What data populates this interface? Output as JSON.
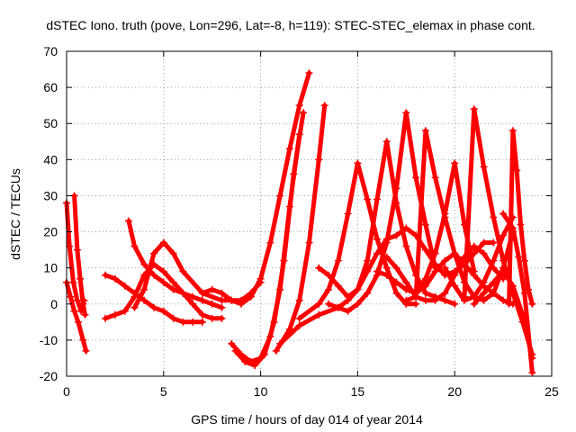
{
  "chart_data": {
    "type": "scatter",
    "title": "dSTEC Iono. truth (pove, Lon=296, Lat=-8, h=119): STEC-STEC_elemax in phase cont.",
    "xlabel": "GPS time / hours of day 014 of year 2014",
    "ylabel": "dSTEC  / TECUs",
    "xlim": [
      0,
      25
    ],
    "ylim": [
      -20,
      70
    ],
    "xticks": [
      0,
      5,
      10,
      15,
      20,
      25
    ],
    "yticks": [
      -20,
      -10,
      0,
      10,
      20,
      30,
      40,
      50,
      60,
      70
    ],
    "grid": true,
    "marker": "+",
    "color": "#ff0000",
    "series": [
      {
        "x": [
          0.0,
          0.15,
          0.35,
          0.55,
          0.75,
          0.9
        ],
        "y": [
          28,
          16,
          6,
          1,
          -2,
          1
        ]
      },
      {
        "x": [
          0.0,
          0.2,
          0.4,
          0.6,
          0.85,
          1.0
        ],
        "y": [
          6,
          2,
          -2,
          -5,
          -10,
          -13
        ]
      },
      {
        "x": [
          0.4,
          0.55,
          0.7,
          0.85,
          0.95
        ],
        "y": [
          30,
          15,
          7,
          0,
          -3
        ]
      },
      {
        "x": [
          2.0,
          2.5,
          3.0,
          3.5,
          4.0,
          4.5,
          5.0,
          5.5,
          6.0,
          6.5,
          7.0,
          7.5,
          8.0
        ],
        "y": [
          -4,
          -3,
          -2,
          2,
          8,
          11,
          9,
          6,
          3,
          0,
          -3,
          -4,
          -4
        ]
      },
      {
        "x": [
          2.0,
          2.5,
          3.0,
          3.5,
          4.0,
          4.5,
          5.0,
          5.5,
          6.0,
          6.5,
          7.0
        ],
        "y": [
          8,
          7,
          5,
          3,
          1,
          -1,
          -2,
          -4,
          -5,
          -5,
          -5
        ]
      },
      {
        "x": [
          3.2,
          3.5,
          4.0,
          4.5,
          5.0,
          5.5,
          6.0,
          6.5,
          7.0,
          7.5,
          8.0
        ],
        "y": [
          23,
          16,
          11,
          8,
          6,
          4,
          3,
          2,
          1,
          0,
          -1
        ]
      },
      {
        "x": [
          3.5,
          4.0,
          4.5,
          5.0,
          5.5,
          6.0,
          7.0,
          8.0,
          8.5,
          9.0,
          9.5,
          10.0
        ],
        "y": [
          -1,
          4,
          14,
          17,
          14,
          9,
          3,
          1,
          1,
          1,
          3,
          6
        ]
      },
      {
        "x": [
          7.0,
          7.5,
          8.0,
          8.5,
          9.0,
          9.5,
          10.0,
          10.5,
          11.0,
          11.5,
          12.0,
          12.5
        ],
        "y": [
          3,
          4,
          3,
          1,
          0,
          2,
          7,
          17,
          30,
          43,
          55,
          64
        ]
      },
      {
        "x": [
          8.5,
          9.0,
          9.5,
          10.0,
          10.5,
          11.0,
          11.5,
          12.0
        ],
        "y": [
          -11,
          -14,
          -16,
          -15,
          -9,
          4,
          27,
          47
        ]
      },
      {
        "x": [
          8.7,
          9.2,
          9.7,
          10.2,
          10.7,
          11.2,
          11.7,
          12.2
        ],
        "y": [
          -13,
          -16,
          -17,
          -14,
          -5,
          12,
          36,
          53
        ]
      },
      {
        "x": [
          10.8,
          11.5,
          12.0,
          12.5,
          13.0,
          13.3
        ],
        "y": [
          -13,
          -7,
          1,
          17,
          40,
          55
        ]
      },
      {
        "x": [
          11.0,
          12.0,
          13.0,
          14.0,
          14.5,
          15.0,
          15.5,
          16.0,
          16.5,
          17.0,
          17.5,
          18.0,
          18.5,
          19.0,
          19.5,
          20.0,
          20.5,
          21.0,
          21.5,
          22.0
        ],
        "y": [
          -11,
          -6,
          -3,
          -1,
          1,
          4,
          9,
          14,
          18,
          19,
          21,
          19,
          15,
          11,
          8,
          9,
          11,
          14,
          17,
          17
        ]
      },
      {
        "x": [
          12.0,
          13.0,
          13.5,
          14.0,
          14.5,
          15.0,
          15.5,
          16.0,
          16.5,
          17.0,
          17.5,
          18.0
        ],
        "y": [
          -4,
          0,
          4,
          12,
          25,
          39,
          29,
          18,
          10,
          3,
          0,
          0
        ]
      },
      {
        "x": [
          13.0,
          13.5,
          14.0,
          14.5,
          15.0,
          15.5,
          16.0,
          16.5,
          17.0,
          17.5,
          18.0,
          18.5,
          19.0,
          19.5,
          20.0
        ],
        "y": [
          10,
          8,
          5,
          2,
          4,
          12,
          29,
          45,
          28,
          16,
          8,
          3,
          2,
          1,
          0
        ]
      },
      {
        "x": [
          13.5,
          14.0,
          14.5,
          15.0,
          15.5,
          16.0,
          16.5,
          17.0,
          17.5,
          18.0,
          18.5,
          19.0
        ],
        "y": [
          0,
          -1,
          -2,
          0,
          3,
          8,
          17,
          32,
          53,
          35,
          22,
          10
        ]
      },
      {
        "x": [
          16.0,
          16.5,
          17.0,
          17.5,
          18.0,
          18.5,
          19.0,
          19.5,
          20.0,
          20.5,
          21.0,
          21.5,
          22.0,
          22.5,
          23.0
        ],
        "y": [
          9,
          8,
          6,
          4,
          3,
          5,
          9,
          12,
          14,
          11,
          8,
          5,
          3,
          1,
          0
        ]
      },
      {
        "x": [
          16.5,
          17.0,
          17.5,
          18.0,
          18.5,
          19.0,
          19.5,
          20.0,
          20.5,
          21.0,
          21.5,
          22.0,
          22.5
        ],
        "y": [
          13,
          10,
          6,
          2,
          1,
          1,
          3,
          8,
          13,
          16,
          14,
          10,
          7
        ]
      },
      {
        "x": [
          17.5,
          18.0,
          18.5,
          19.0,
          19.5,
          20.0,
          20.5,
          21.0,
          21.5,
          22.0,
          22.5,
          23.0
        ],
        "y": [
          1,
          2,
          48,
          35,
          24,
          14,
          6,
          2,
          1,
          3,
          10,
          20
        ]
      },
      {
        "x": [
          18.0,
          18.5,
          19.0,
          19.5,
          20.0,
          20.5,
          21.0
        ],
        "y": [
          3,
          7,
          14,
          25,
          39,
          22,
          9
        ]
      },
      {
        "x": [
          19.5,
          20.0,
          20.5,
          21.0,
          21.5,
          22.0,
          22.5,
          23.0
        ],
        "y": [
          10,
          5,
          1,
          2,
          6,
          12,
          19,
          24
        ]
      },
      {
        "x": [
          20.5,
          21.0,
          21.5,
          22.0,
          22.5,
          23.0,
          23.5,
          24.0
        ],
        "y": [
          2,
          54,
          38,
          24,
          12,
          3,
          -5,
          -14
        ]
      },
      {
        "x": [
          21.0,
          21.5,
          22.0,
          22.5,
          23.0,
          23.5,
          24.0
        ],
        "y": [
          0,
          3,
          6,
          9,
          5,
          -3,
          -15
        ]
      },
      {
        "x": [
          22.5,
          23.0,
          23.3,
          23.6,
          24.0
        ],
        "y": [
          25,
          21,
          13,
          3,
          -19
        ]
      },
      {
        "x": [
          22.8,
          23.0,
          23.2,
          23.4,
          23.6,
          23.8,
          24.0
        ],
        "y": [
          0,
          48,
          37,
          22,
          12,
          4,
          0
        ]
      }
    ]
  }
}
